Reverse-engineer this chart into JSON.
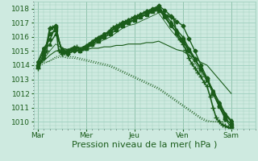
{
  "background_color": "#ceeae0",
  "plot_background": "#ceeae0",
  "grid_color": "#9ecfbe",
  "line_color": "#1a5c1a",
  "ylim": [
    1009.5,
    1018.5
  ],
  "yticks": [
    1010,
    1011,
    1012,
    1013,
    1014,
    1015,
    1016,
    1017,
    1018
  ],
  "xlabel": "Pression niveau de la mer( hPa )",
  "xlabel_fontsize": 8,
  "tick_fontsize": 6.5,
  "day_labels": [
    "Mar",
    "Mer",
    "Jeu",
    "Ven",
    "Sam"
  ],
  "day_positions": [
    0,
    48,
    96,
    144,
    192
  ],
  "xlim": [
    -4,
    216
  ],
  "series": [
    {
      "x": [
        0,
        3,
        6,
        9,
        12,
        15,
        18,
        21,
        24,
        27,
        30,
        33,
        36,
        39,
        42,
        45,
        48,
        51,
        54,
        57,
        60,
        63,
        66,
        69,
        72,
        75,
        78,
        81,
        84,
        87,
        90,
        93,
        96,
        99,
        102,
        105,
        108,
        111,
        114,
        117,
        120,
        123,
        126,
        129,
        132,
        135,
        138,
        141,
        144,
        147,
        150,
        153,
        156,
        159,
        162,
        165,
        168,
        171,
        174,
        177,
        180,
        183,
        186,
        189,
        192
      ],
      "y": [
        1013.8,
        1014.2,
        1014.5,
        1015.0,
        1016.6,
        1016.7,
        1016.7,
        1015.0,
        1014.8,
        1014.9,
        1015.0,
        1015.1,
        1015.2,
        1015.3,
        1015.1,
        1015.2,
        1015.3,
        1015.5,
        1015.6,
        1015.8,
        1015.9,
        1016.0,
        1016.1,
        1016.3,
        1016.5,
        1016.7,
        1016.8,
        1016.9,
        1017.0,
        1017.1,
        1017.2,
        1017.3,
        1017.4,
        1017.5,
        1017.6,
        1017.7,
        1017.8,
        1017.8,
        1017.9,
        1018.0,
        1018.1,
        1017.8,
        1017.6,
        1017.5,
        1017.4,
        1017.3,
        1016.2,
        1015.8,
        1015.5,
        1015.1,
        1014.5,
        1014.1,
        1013.8,
        1013.5,
        1013.2,
        1012.8,
        1012.5,
        1011.8,
        1011.0,
        1010.3,
        1010.0,
        1009.8,
        1009.7,
        1009.6,
        1009.5
      ],
      "style": "-",
      "marker": "+",
      "lw": 1.2,
      "ms": 4
    },
    {
      "x": [
        0,
        6,
        12,
        18,
        24,
        30,
        36,
        42,
        48,
        54,
        60,
        66,
        72,
        78,
        84,
        90,
        96,
        102,
        108,
        114,
        120,
        126,
        132,
        138,
        144,
        150,
        156,
        162,
        168,
        174,
        180,
        186,
        192
      ],
      "y": [
        1014.0,
        1014.5,
        1016.6,
        1016.8,
        1014.9,
        1014.8,
        1015.0,
        1015.0,
        1015.2,
        1015.5,
        1015.8,
        1016.1,
        1016.4,
        1016.7,
        1017.0,
        1017.2,
        1017.4,
        1017.6,
        1017.8,
        1018.0,
        1018.2,
        1017.9,
        1017.5,
        1017.1,
        1016.8,
        1015.9,
        1015.0,
        1014.0,
        1013.1,
        1012.0,
        1011.1,
        1010.2,
        1009.6
      ],
      "style": "-",
      "marker": "D",
      "lw": 1.0,
      "ms": 2.5
    },
    {
      "x": [
        0,
        6,
        12,
        18,
        24,
        30,
        36,
        42,
        48,
        54,
        60,
        66,
        72,
        78,
        84,
        90,
        96,
        102,
        108,
        114,
        120,
        126,
        132,
        138,
        144,
        150,
        156,
        162,
        168,
        174,
        180,
        186,
        192
      ],
      "y": [
        1013.9,
        1014.8,
        1016.2,
        1016.5,
        1015.0,
        1014.9,
        1015.1,
        1015.0,
        1015.2,
        1015.5,
        1015.7,
        1016.0,
        1016.2,
        1016.5,
        1016.8,
        1017.0,
        1017.2,
        1017.4,
        1017.6,
        1017.8,
        1017.9,
        1017.5,
        1016.9,
        1016.3,
        1015.8,
        1015.1,
        1014.4,
        1013.7,
        1013.0,
        1012.0,
        1011.1,
        1010.3,
        1009.8
      ],
      "style": "-",
      "marker": "s",
      "lw": 1.0,
      "ms": 2.5
    },
    {
      "x": [
        0,
        6,
        12,
        18,
        24,
        30,
        36,
        42,
        48,
        54,
        60,
        66,
        72,
        78,
        84,
        90,
        96,
        102,
        108,
        114,
        120,
        126,
        132,
        138,
        144,
        150,
        156,
        162,
        168,
        174,
        180,
        186,
        192
      ],
      "y": [
        1014.1,
        1015.0,
        1015.5,
        1016.2,
        1015.2,
        1015.1,
        1015.3,
        1015.2,
        1015.4,
        1015.7,
        1016.0,
        1016.2,
        1016.4,
        1016.6,
        1016.9,
        1017.0,
        1017.2,
        1017.4,
        1017.6,
        1017.8,
        1018.0,
        1017.6,
        1017.1,
        1016.5,
        1016.0,
        1015.2,
        1014.5,
        1013.7,
        1013.0,
        1012.2,
        1011.4,
        1010.6,
        1010.1
      ],
      "style": "-",
      "marker": "^",
      "lw": 1.0,
      "ms": 2.5
    },
    {
      "x": [
        0,
        6,
        12,
        18,
        24,
        30,
        36,
        42,
        48,
        54,
        60,
        66,
        72,
        78,
        84,
        90,
        96,
        102,
        108,
        114,
        120,
        126,
        132,
        138,
        144,
        150,
        156,
        162,
        168,
        174,
        180,
        186,
        192
      ],
      "y": [
        1014.2,
        1015.2,
        1015.8,
        1016.7,
        1015.0,
        1015.0,
        1015.2,
        1015.1,
        1015.3,
        1015.6,
        1015.9,
        1016.2,
        1016.4,
        1016.7,
        1016.9,
        1017.0,
        1017.2,
        1017.4,
        1017.6,
        1017.8,
        1018.0,
        1017.4,
        1016.8,
        1016.3,
        1015.7,
        1015.0,
        1014.4,
        1013.7,
        1013.1,
        1012.2,
        1011.3,
        1010.5,
        1010.0
      ],
      "style": "-",
      "marker": "o",
      "lw": 1.0,
      "ms": 2.5
    },
    {
      "x": [
        0,
        6,
        12,
        18,
        24,
        30,
        36,
        42,
        48,
        54,
        60,
        66,
        72,
        78,
        84,
        90,
        96,
        102,
        108,
        114,
        120,
        126,
        132,
        138,
        144,
        150,
        156,
        162,
        168,
        174,
        180,
        186,
        192
      ],
      "y": [
        1014.0,
        1014.3,
        1014.7,
        1015.0,
        1015.1,
        1015.0,
        1015.1,
        1015.0,
        1015.1,
        1015.2,
        1015.2,
        1015.3,
        1015.3,
        1015.4,
        1015.4,
        1015.5,
        1015.5,
        1015.5,
        1015.6,
        1015.6,
        1015.7,
        1015.5,
        1015.3,
        1015.1,
        1015.0,
        1014.7,
        1014.5,
        1014.2,
        1014.0,
        1013.5,
        1013.0,
        1012.5,
        1012.0
      ],
      "style": "-",
      "marker": null,
      "lw": 0.8,
      "ms": 0
    },
    {
      "x": [
        0,
        6,
        12,
        18,
        24,
        30,
        36,
        42,
        48,
        54,
        60,
        66,
        72,
        78,
        84,
        90,
        96,
        102,
        108,
        114,
        120,
        126,
        132,
        138,
        144,
        150,
        156,
        162,
        168,
        174,
        180,
        186,
        192
      ],
      "y": [
        1014.1,
        1014.2,
        1014.3,
        1014.5,
        1014.6,
        1014.5,
        1014.5,
        1014.4,
        1014.3,
        1014.2,
        1014.1,
        1014.0,
        1013.9,
        1013.7,
        1013.5,
        1013.3,
        1013.1,
        1012.9,
        1012.7,
        1012.5,
        1012.3,
        1012.0,
        1011.7,
        1011.4,
        1011.1,
        1010.8,
        1010.5,
        1010.2,
        1010.0,
        1010.0,
        1010.0,
        1010.0,
        1010.0
      ],
      "style": ":",
      "marker": null,
      "lw": 0.8,
      "ms": 0
    },
    {
      "x": [
        0,
        6,
        12,
        18,
        24,
        30,
        36,
        42,
        48,
        54,
        60,
        66,
        72,
        78,
        84,
        90,
        96,
        102,
        108,
        114,
        120,
        126,
        132,
        138,
        144,
        150,
        156,
        162,
        168,
        174,
        180,
        186,
        192
      ],
      "y": [
        1013.9,
        1014.1,
        1014.3,
        1014.6,
        1014.7,
        1014.6,
        1014.6,
        1014.5,
        1014.4,
        1014.3,
        1014.2,
        1014.1,
        1014.0,
        1013.8,
        1013.6,
        1013.4,
        1013.2,
        1013.0,
        1012.8,
        1012.6,
        1012.4,
        1012.1,
        1011.8,
        1011.5,
        1011.2,
        1010.9,
        1010.6,
        1010.3,
        1010.1,
        1010.0,
        1010.0,
        1010.0,
        1010.0
      ],
      "style": ":",
      "marker": null,
      "lw": 0.8,
      "ms": 0
    },
    {
      "x": [
        0,
        6,
        12,
        18,
        24,
        30,
        36,
        42,
        48,
        54,
        60,
        66,
        72,
        78,
        84,
        90,
        96,
        102,
        108,
        114,
        120,
        126,
        132,
        138,
        144,
        150,
        156,
        162,
        168,
        174,
        180,
        186,
        192
      ],
      "y": [
        1014.0,
        1014.4,
        1015.0,
        1015.5,
        1015.2,
        1015.1,
        1015.2,
        1015.1,
        1015.2,
        1015.4,
        1015.6,
        1015.8,
        1016.0,
        1016.3,
        1016.6,
        1016.8,
        1016.9,
        1017.1,
        1017.3,
        1017.5,
        1017.7,
        1017.1,
        1016.5,
        1016.0,
        1015.5,
        1014.8,
        1014.2,
        1013.5,
        1012.9,
        1012.0,
        1011.2,
        1010.4,
        1010.1
      ],
      "style": "-",
      "marker": null,
      "lw": 0.6,
      "ms": 0
    }
  ]
}
